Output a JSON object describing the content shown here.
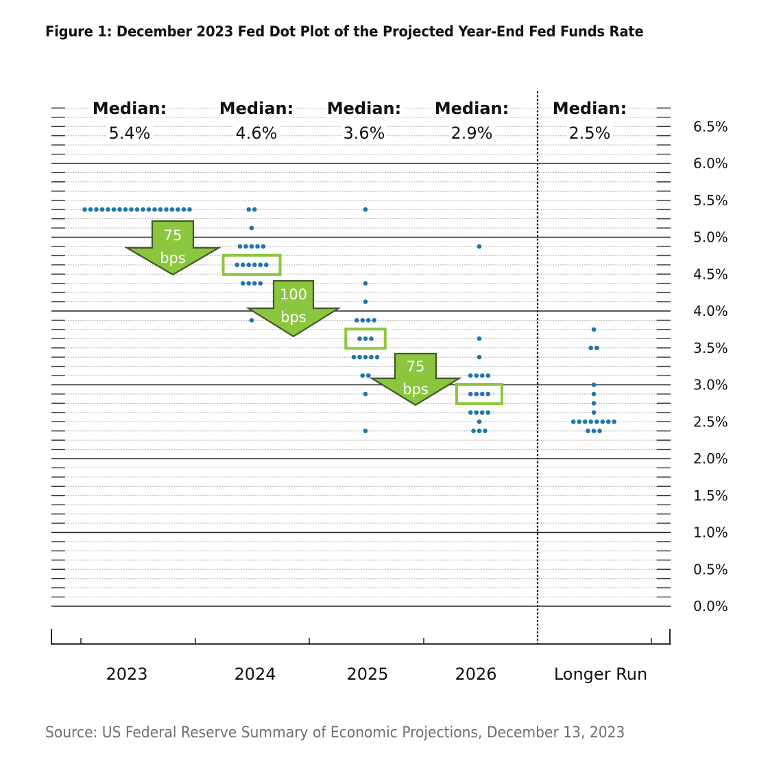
{
  "title": "Figure 1: December 2023 Fed Dot Plot of the Projected Year-End Fed Funds Rate",
  "source": "Source: US Federal Reserve Summary of Economic Projections, December 13, 2023",
  "colors": {
    "dot": "#1f77a8",
    "highlight_box": "#8cc63f",
    "arrow_fill": "#8cc63f",
    "arrow_stroke": "#3a5a28",
    "major_grid": "#222222",
    "minor_grid": "#9a9a9a"
  },
  "chart_data": {
    "type": "scatter",
    "subtype": "dot-plot",
    "title": "Figure 1: December 2023 Fed Dot Plot of the Projected Year-End Fed Funds Rate",
    "categories": [
      "2023",
      "2024",
      "2025",
      "2026",
      "Longer Run"
    ],
    "y_range": [
      0.0,
      6.75
    ],
    "y_ticks": [
      "6.5%",
      "6.0%",
      "5.5%",
      "5.0%",
      "4.5%",
      "4.0%",
      "3.5%",
      "3.0%",
      "2.5%",
      "2.0%",
      "1.5%",
      "1.0%",
      "0.5%",
      "0.0%"
    ],
    "y_tick_values": [
      6.5,
      6.0,
      5.5,
      5.0,
      4.5,
      4.0,
      3.5,
      3.0,
      2.5,
      2.0,
      1.5,
      1.0,
      0.5,
      0.0
    ],
    "y_axis_side": "right",
    "grid": true,
    "series": [
      {
        "category": "2023",
        "median_label": "Median:",
        "median_value": "5.4%",
        "median": 5.375,
        "dots": [
          {
            "y": 5.375,
            "count": 19
          }
        ]
      },
      {
        "category": "2024",
        "median_label": "Median:",
        "median_value": "4.6%",
        "median": 4.625,
        "dots": [
          {
            "y": 5.375,
            "count": 2
          },
          {
            "y": 5.125,
            "count": 1
          },
          {
            "y": 4.875,
            "count": 5
          },
          {
            "y": 4.625,
            "count": 6
          },
          {
            "y": 4.375,
            "count": 4
          },
          {
            "y": 3.875,
            "count": 1
          }
        ]
      },
      {
        "category": "2025",
        "median_label": "Median:",
        "median_value": "3.6%",
        "median": 3.625,
        "dots": [
          {
            "y": 5.375,
            "count": 1
          },
          {
            "y": 4.375,
            "count": 1
          },
          {
            "y": 4.125,
            "count": 1
          },
          {
            "y": 3.875,
            "count": 4
          },
          {
            "y": 3.625,
            "count": 3
          },
          {
            "y": 3.375,
            "count": 5
          },
          {
            "y": 3.125,
            "count": 2
          },
          {
            "y": 2.875,
            "count": 1
          },
          {
            "y": 2.375,
            "count": 1
          }
        ]
      },
      {
        "category": "2026",
        "median_label": "Median:",
        "median_value": "2.9%",
        "median": 2.875,
        "dots": [
          {
            "y": 4.875,
            "count": 1
          },
          {
            "y": 3.625,
            "count": 1
          },
          {
            "y": 3.375,
            "count": 1
          },
          {
            "y": 3.125,
            "count": 4
          },
          {
            "y": 2.875,
            "count": 4
          },
          {
            "y": 2.625,
            "count": 4
          },
          {
            "y": 2.5,
            "count": 1
          },
          {
            "y": 2.375,
            "count": 3
          }
        ]
      },
      {
        "category": "Longer Run",
        "median_label": "Median:",
        "median_value": "2.5%",
        "median": 2.5,
        "dots": [
          {
            "y": 3.75,
            "count": 1
          },
          {
            "y": 3.5,
            "count": 2
          },
          {
            "y": 3.0,
            "count": 1
          },
          {
            "y": 2.875,
            "count": 1
          },
          {
            "y": 2.75,
            "count": 1
          },
          {
            "y": 2.625,
            "count": 1
          },
          {
            "y": 2.5,
            "count": 8
          },
          {
            "y": 2.375,
            "count": 3
          }
        ]
      }
    ],
    "annotations": [
      {
        "text": [
          "75",
          "bps"
        ],
        "from": "2023",
        "to": "2024"
      },
      {
        "text": [
          "100",
          "bps"
        ],
        "from": "2024",
        "to": "2025"
      },
      {
        "text": [
          "75",
          "bps"
        ],
        "from": "2025",
        "to": "2026"
      }
    ]
  }
}
